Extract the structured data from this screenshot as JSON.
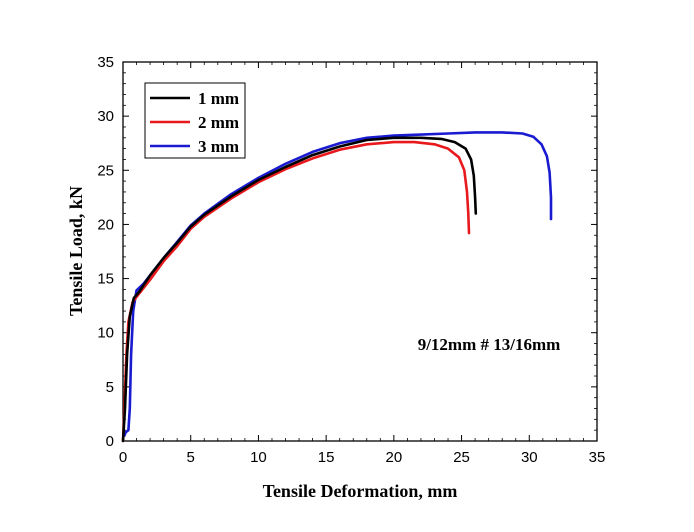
{
  "chart_data": {
    "type": "line",
    "xlabel": "Tensile Deformation, mm",
    "ylabel": "Tensile Load, kN",
    "xlim": [
      0,
      35
    ],
    "ylim": [
      0,
      35
    ],
    "xticks": [
      0,
      5,
      10,
      15,
      20,
      25,
      30,
      35
    ],
    "yticks": [
      0,
      5,
      10,
      15,
      20,
      25,
      30,
      35
    ],
    "grid": false,
    "legend_position": "top-left",
    "annotation": "9/12mm # 13/16mm",
    "series": [
      {
        "name": "1 mm",
        "color": "#000000",
        "points": [
          [
            0,
            0
          ],
          [
            0.15,
            3
          ],
          [
            0.3,
            8
          ],
          [
            0.5,
            11.5
          ],
          [
            0.8,
            13.2
          ],
          [
            1.2,
            13.8
          ],
          [
            2,
            15.3
          ],
          [
            3,
            16.9
          ],
          [
            4,
            18.3
          ],
          [
            5,
            19.8
          ],
          [
            6,
            20.9
          ],
          [
            8,
            22.6
          ],
          [
            10,
            24.1
          ],
          [
            12,
            25.3
          ],
          [
            14,
            26.4
          ],
          [
            16,
            27.2
          ],
          [
            18,
            27.8
          ],
          [
            20,
            28.0
          ],
          [
            22,
            28.0
          ],
          [
            23.5,
            27.9
          ],
          [
            24.5,
            27.6
          ],
          [
            25.3,
            27.0
          ],
          [
            25.7,
            26.0
          ],
          [
            25.9,
            24.5
          ],
          [
            26.0,
            22.5
          ],
          [
            26.05,
            21.0
          ]
        ]
      },
      {
        "name": "2 mm",
        "color": "#e8191c",
        "points": [
          [
            0,
            0
          ],
          [
            0.1,
            3
          ],
          [
            0.25,
            8
          ],
          [
            0.4,
            11
          ],
          [
            0.7,
            12.8
          ],
          [
            1.0,
            13.3
          ],
          [
            2,
            14.9
          ],
          [
            3,
            16.6
          ],
          [
            4,
            18.0
          ],
          [
            5,
            19.6
          ],
          [
            6,
            20.7
          ],
          [
            8,
            22.4
          ],
          [
            10,
            23.9
          ],
          [
            12,
            25.1
          ],
          [
            14,
            26.1
          ],
          [
            16,
            26.9
          ],
          [
            18,
            27.4
          ],
          [
            20,
            27.6
          ],
          [
            21.5,
            27.6
          ],
          [
            23,
            27.4
          ],
          [
            24,
            27.0
          ],
          [
            24.8,
            26.2
          ],
          [
            25.2,
            25.0
          ],
          [
            25.4,
            23.0
          ],
          [
            25.5,
            21.0
          ],
          [
            25.55,
            19.2
          ]
        ]
      },
      {
        "name": "3 mm",
        "color": "#1a1ad1",
        "points": [
          [
            0.1,
            0.5
          ],
          [
            0.2,
            0.8
          ],
          [
            0.4,
            1.0
          ],
          [
            0.5,
            3
          ],
          [
            0.6,
            8
          ],
          [
            0.75,
            12
          ],
          [
            1.0,
            13.9
          ],
          [
            1.5,
            14.5
          ],
          [
            2,
            15.3
          ],
          [
            3,
            16.9
          ],
          [
            4,
            18.4
          ],
          [
            5,
            19.9
          ],
          [
            6,
            21.0
          ],
          [
            8,
            22.8
          ],
          [
            10,
            24.3
          ],
          [
            12,
            25.6
          ],
          [
            14,
            26.7
          ],
          [
            16,
            27.5
          ],
          [
            18,
            28.0
          ],
          [
            20,
            28.2
          ],
          [
            22,
            28.3
          ],
          [
            24,
            28.4
          ],
          [
            26,
            28.5
          ],
          [
            28,
            28.5
          ],
          [
            29.5,
            28.4
          ],
          [
            30.3,
            28.1
          ],
          [
            30.9,
            27.4
          ],
          [
            31.3,
            26.3
          ],
          [
            31.5,
            24.8
          ],
          [
            31.6,
            22.5
          ],
          [
            31.6,
            20.5
          ]
        ]
      }
    ]
  }
}
